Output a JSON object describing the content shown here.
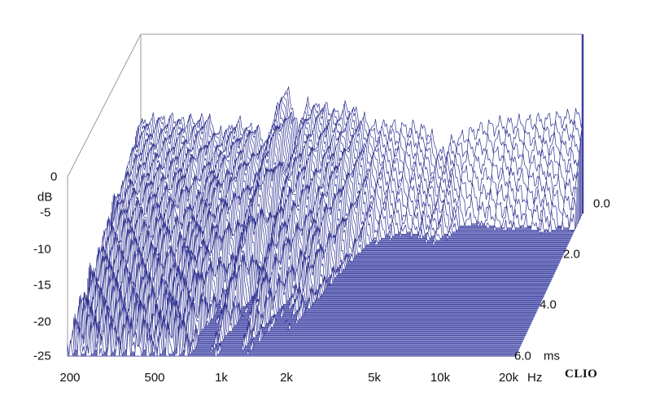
{
  "chart_data": {
    "type": "waterfall",
    "brand": "CLIO",
    "y_axis": {
      "unit": "dB",
      "range": [
        -25,
        0
      ],
      "ticks": [
        "0",
        "-5",
        "-10",
        "-15",
        "-20",
        "-25"
      ]
    },
    "x_axis": {
      "scale": "log",
      "unit": "Hz",
      "range": [
        200,
        20000
      ],
      "ticks": [
        {
          "value": 200,
          "label": "200"
        },
        {
          "value": 500,
          "label": "500"
        },
        {
          "value": 1000,
          "label": "1k"
        },
        {
          "value": 2000,
          "label": "2k"
        },
        {
          "value": 5000,
          "label": "5k"
        },
        {
          "value": 10000,
          "label": "10k"
        },
        {
          "value": 20000,
          "label": "20k"
        }
      ]
    },
    "z_axis": {
      "unit": "ms",
      "range": [
        0,
        6
      ],
      "ticks": [
        "0.0",
        "2.0",
        "4.0",
        "6.0"
      ]
    },
    "slices": 70,
    "initial_response_db": [
      {
        "f": 200,
        "db": -13
      },
      {
        "f": 210,
        "db": -12.6
      },
      {
        "f": 220,
        "db": -12.3
      },
      {
        "f": 230,
        "db": -12.4
      },
      {
        "f": 245,
        "db": -12.2
      },
      {
        "f": 260,
        "db": -12.4
      },
      {
        "f": 280,
        "db": -12.1
      },
      {
        "f": 300,
        "db": -12.5
      },
      {
        "f": 330,
        "db": -12.3
      },
      {
        "f": 360,
        "db": -12.6
      },
      {
        "f": 400,
        "db": -11.8
      },
      {
        "f": 430,
        "db": -13.5
      },
      {
        "f": 460,
        "db": -14.2
      },
      {
        "f": 500,
        "db": -13.8
      },
      {
        "f": 540,
        "db": -12.9
      },
      {
        "f": 570,
        "db": -12.6
      },
      {
        "f": 600,
        "db": -13.9
      },
      {
        "f": 650,
        "db": -12.8
      },
      {
        "f": 700,
        "db": -14.5
      },
      {
        "f": 740,
        "db": -15.5
      },
      {
        "f": 780,
        "db": -14
      },
      {
        "f": 830,
        "db": -11
      },
      {
        "f": 870,
        "db": -9
      },
      {
        "f": 920,
        "db": -8.2
      },
      {
        "f": 980,
        "db": -10.2
      },
      {
        "f": 1030,
        "db": -14
      },
      {
        "f": 1080,
        "db": -12
      },
      {
        "f": 1150,
        "db": -9.8
      },
      {
        "f": 1230,
        "db": -10.6
      },
      {
        "f": 1330,
        "db": -10.2
      },
      {
        "f": 1450,
        "db": -11
      },
      {
        "f": 1550,
        "db": -11.4
      },
      {
        "f": 1650,
        "db": -10.6
      },
      {
        "f": 1800,
        "db": -10.7
      },
      {
        "f": 1950,
        "db": -11.6
      },
      {
        "f": 2100,
        "db": -12.5
      },
      {
        "f": 2250,
        "db": -13.2
      },
      {
        "f": 2450,
        "db": -13.1
      },
      {
        "f": 2700,
        "db": -12.9
      },
      {
        "f": 3000,
        "db": -13.3
      },
      {
        "f": 3300,
        "db": -13.1
      },
      {
        "f": 3700,
        "db": -13.5
      },
      {
        "f": 4000,
        "db": -13.6
      },
      {
        "f": 4300,
        "db": -15.5
      },
      {
        "f": 4600,
        "db": -17
      },
      {
        "f": 4800,
        "db": -16.5
      },
      {
        "f": 5100,
        "db": -15.3
      },
      {
        "f": 5500,
        "db": -14.8
      },
      {
        "f": 6000,
        "db": -14.2
      },
      {
        "f": 6500,
        "db": -13.6
      },
      {
        "f": 7000,
        "db": -13.3
      },
      {
        "f": 7600,
        "db": -13
      },
      {
        "f": 8200,
        "db": -12.8
      },
      {
        "f": 9000,
        "db": -12.6
      },
      {
        "f": 10000,
        "db": -12.6
      },
      {
        "f": 11000,
        "db": -12.4
      },
      {
        "f": 12000,
        "db": -12.3
      },
      {
        "f": 13000,
        "db": -12.1
      },
      {
        "f": 14500,
        "db": -12
      },
      {
        "f": 16000,
        "db": -11.8
      },
      {
        "f": 17500,
        "db": -11.7
      },
      {
        "f": 18500,
        "db": -11.5
      },
      {
        "f": 20000,
        "db": -11.6
      }
    ],
    "decay_ms": [
      {
        "f": 200,
        "ms": 5.5
      },
      {
        "f": 250,
        "ms": 5.6
      },
      {
        "f": 300,
        "ms": 5.6
      },
      {
        "f": 350,
        "ms": 5.4
      },
      {
        "f": 400,
        "ms": 5.6
      },
      {
        "f": 450,
        "ms": 5.8
      },
      {
        "f": 500,
        "ms": 5.9
      },
      {
        "f": 550,
        "ms": 5.8
      },
      {
        "f": 600,
        "ms": 5.9
      },
      {
        "f": 650,
        "ms": 6
      },
      {
        "f": 700,
        "ms": 5.7
      },
      {
        "f": 750,
        "ms": 4.2
      },
      {
        "f": 800,
        "ms": 3.6
      },
      {
        "f": 850,
        "ms": 3.6
      },
      {
        "f": 900,
        "ms": 3.9
      },
      {
        "f": 1000,
        "ms": 3.1
      },
      {
        "f": 1100,
        "ms": 3.4
      },
      {
        "f": 1200,
        "ms": 4.1
      },
      {
        "f": 1300,
        "ms": 3.8
      },
      {
        "f": 1400,
        "ms": 3.5
      },
      {
        "f": 1500,
        "ms": 3
      },
      {
        "f": 1600,
        "ms": 3.1
      },
      {
        "f": 1800,
        "ms": 3.4
      },
      {
        "f": 2000,
        "ms": 2.8
      },
      {
        "f": 2300,
        "ms": 1.9
      },
      {
        "f": 2600,
        "ms": 1.3
      },
      {
        "f": 3000,
        "ms": 1.1
      },
      {
        "f": 3500,
        "ms": 0.9
      },
      {
        "f": 4000,
        "ms": 1
      },
      {
        "f": 4500,
        "ms": 1.6
      },
      {
        "f": 5000,
        "ms": 1.5
      },
      {
        "f": 5500,
        "ms": 1.2
      },
      {
        "f": 6000,
        "ms": 0.7
      },
      {
        "f": 7000,
        "ms": 0.5
      },
      {
        "f": 8000,
        "ms": 0.6
      },
      {
        "f": 10000,
        "ms": 0.7
      },
      {
        "f": 12000,
        "ms": 0.6
      },
      {
        "f": 15000,
        "ms": 0.8
      },
      {
        "f": 17000,
        "ms": 0.6
      },
      {
        "f": 20000,
        "ms": 0.7
      }
    ],
    "colors": {
      "trace": "#2d2f8f",
      "floor": "#8c90cf",
      "floor_line": "#5a5eb1",
      "frame": "#9a9a9a",
      "right_edge": "#3b3fa5"
    }
  }
}
